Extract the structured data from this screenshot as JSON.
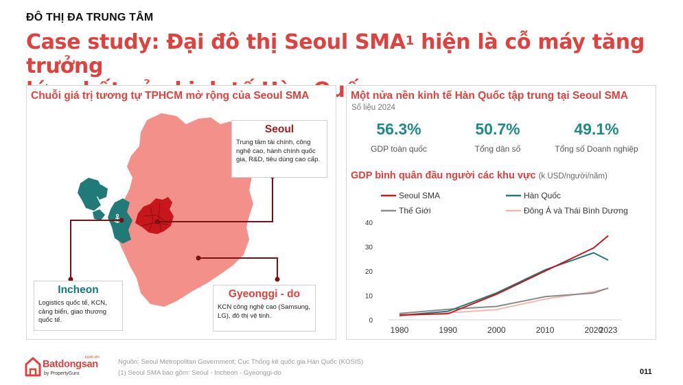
{
  "header": {
    "section": "ĐÔ THỊ ĐA TRUNG TÂM",
    "headline_line1_before": "Case study: Đại đô thị Seoul SMA",
    "headline_sup": "1",
    "headline_line1_after": " hiện là cỗ máy tăng trưởng",
    "headline_line2": "lớn nhất của kinh tế Hàn Quốc"
  },
  "left_panel": {
    "title": "Chuỗi giá trị tương tự TPHCM mở rộng của Seoul SMA",
    "colors": {
      "gyeonggi": "#f4908a",
      "seoul": "#c8161d",
      "incheon": "#1f7a78",
      "connector": "#7a1010"
    },
    "seoul": {
      "title": "Seoul",
      "body": "Trung tâm tài chính, công nghệ cao, hành chính quốc gia, R&D, tiêu dùng cao cấp."
    },
    "incheon": {
      "title": "Incheon",
      "body": "Logistics quốc tế, KCN, cảng biển, giao thương quốc tế."
    },
    "gyeonggi": {
      "title": "Gyeonggi - do",
      "body": "KCN công nghệ cao (Samsung, LG), đô thị vệ tinh."
    },
    "icons": [
      "airplane-icon",
      "port-icon"
    ]
  },
  "right_panel": {
    "title": "Một nửa nền kinh tế Hàn Quốc tập trung tại Seoul SMA",
    "subtitle": "Số liệu 2024",
    "stats": [
      {
        "value": "56.3%",
        "label": "GDP toàn quốc"
      },
      {
        "value": "50.7%",
        "label": "Tổng dân số"
      },
      {
        "value": "49.1%",
        "label": "Tổng số Doanh nghiệp"
      }
    ]
  },
  "chart_data": {
    "type": "line",
    "title": "GDP bình quân đầu người các khu vực",
    "unit": "(k USD/người/năm)",
    "x": [
      1980,
      1990,
      2000,
      2010,
      2020,
      2023
    ],
    "ylim": [
      0,
      40
    ],
    "yticks": [
      0,
      10,
      20,
      30,
      40
    ],
    "grid": false,
    "legend_position": "top",
    "series": [
      {
        "name": "Seoul SMA",
        "color": "#c8161d",
        "values": [
          2,
          2.5,
          10.5,
          20,
          29.5,
          34.5
        ]
      },
      {
        "name": "Hàn Quốc",
        "color": "#1f7a78",
        "values": [
          1.8,
          3.5,
          11,
          20.5,
          27.5,
          24.5
        ]
      },
      {
        "name": "Thế Giới",
        "color": "#8a8a8a",
        "values": [
          2.6,
          4.3,
          5.5,
          9.5,
          11,
          13
        ]
      },
      {
        "name": "Đông Á và Thái Bình Dương",
        "color": "#f4b8b4",
        "values": [
          1.5,
          2.8,
          4.2,
          8.5,
          11.5,
          13
        ]
      }
    ]
  },
  "footer": {
    "source": "Nguồn: Seoul Metropolitan Government; Cục Thống kê quốc gia Hàn Quốc (KOSIS)",
    "note": "(1) Seoul SMA bao gồm: Seoul - Incheon - Gyeonggi-do",
    "page_number": "011",
    "logo_text": "Batdongsan",
    "logo_domain": ".com.vn",
    "logo_sub": "by PropertyGuru"
  }
}
